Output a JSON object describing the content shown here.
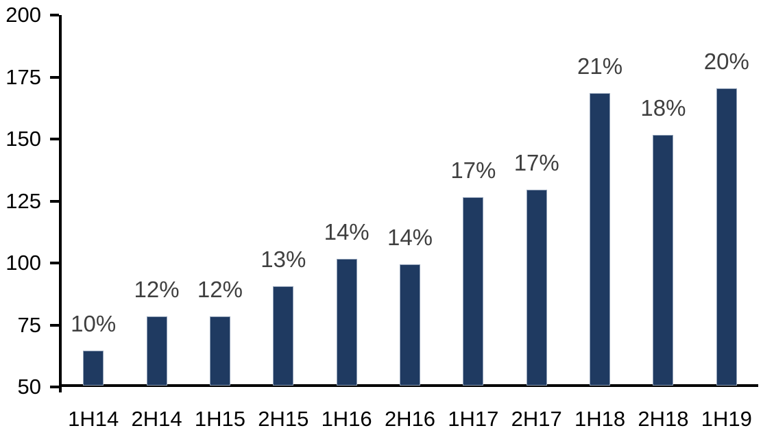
{
  "chart_data": {
    "type": "bar",
    "title": "",
    "categories": [
      "1H14",
      "2H14",
      "1H15",
      "2H15",
      "1H16",
      "2H16",
      "1H17",
      "2H17",
      "1H18",
      "2H18",
      "1H19"
    ],
    "values": [
      64,
      78,
      78,
      90,
      101,
      99,
      126,
      129,
      168,
      151,
      170
    ],
    "data_labels": [
      "10%",
      "12%",
      "12%",
      "13%",
      "14%",
      "14%",
      "17%",
      "17%",
      "21%",
      "18%",
      "20%"
    ],
    "xlabel": "",
    "ylabel": "",
    "ylim": [
      50,
      200
    ],
    "yticks": [
      50,
      75,
      100,
      125,
      150,
      175,
      200
    ],
    "grid": false,
    "legend": false,
    "bar_color": "#1F3A61",
    "bar_border_color": "#91A1B8",
    "data_label_color": "#3F3F3F",
    "axis_color": "#000000",
    "background_color": "#FFFFFF"
  }
}
